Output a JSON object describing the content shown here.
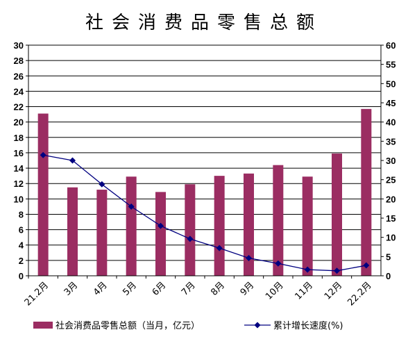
{
  "chart_data": {
    "type": "bar",
    "title": "社会消费品零售总额",
    "categories": [
      "21.2月",
      "3月",
      "4月",
      "5月",
      "6月",
      "7月",
      "8月",
      "9月",
      "10月",
      "11月",
      "12月",
      "22.2月"
    ],
    "y_left": {
      "min": 0,
      "max": 30,
      "step": 2
    },
    "y_right": {
      "min": 0,
      "max": 60,
      "step": 5
    },
    "grid": true,
    "legend_position": "bottom",
    "series": [
      {
        "name": "社会消费品零售总额（当月，亿元）",
        "type": "bar",
        "axis": "left",
        "values": [
          21.1,
          11.5,
          11.2,
          12.9,
          10.9,
          11.9,
          13.0,
          13.3,
          14.4,
          12.9,
          15.9,
          21.7
        ]
      },
      {
        "name": "累计增长速度(%)",
        "type": "line",
        "axis": "right",
        "values": [
          31.4,
          30.0,
          23.8,
          18.0,
          13.0,
          9.6,
          7.2,
          4.6,
          3.2,
          1.6,
          1.3,
          2.7
        ]
      }
    ],
    "colors": {
      "bar": "#9b2d62",
      "line": "#000080"
    }
  }
}
